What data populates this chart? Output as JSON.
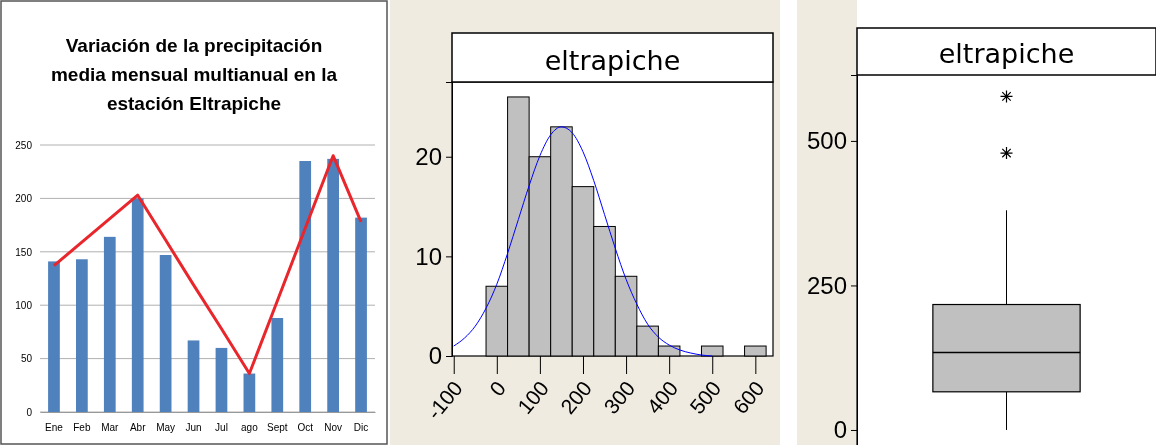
{
  "chart_data": [
    {
      "type": "bar",
      "title": "Variación de la precipitación media mensual multianual  en la estación Eltrapiche",
      "categories": [
        "Ene",
        "Feb",
        "Mar",
        "Abr",
        "May",
        "Jun",
        "Jul",
        "ago",
        "Sept",
        "Oct",
        "Nov",
        "Dic"
      ],
      "ylim": [
        0,
        250
      ],
      "yticks": [
        0,
        50,
        100,
        150,
        200,
        250
      ],
      "grid": "y",
      "series": [
        {
          "type": "bar",
          "color": "#4f81bd",
          "values": [
            141,
            143,
            164,
            200,
            147,
            67,
            60,
            36,
            88,
            235,
            237,
            182
          ]
        },
        {
          "type": "line",
          "color": "#e8262b",
          "values": [
            137,
            159,
            181,
            203,
            161,
            119,
            78,
            36,
            104,
            172,
            240,
            178
          ]
        }
      ]
    },
    {
      "type": "histogram",
      "title": "eltrapiche",
      "xlim": [
        -104,
        641
      ],
      "xticks": [
        -100,
        0,
        100,
        200,
        300,
        400,
        500,
        600
      ],
      "ylim": [
        0,
        27.5
      ],
      "yticks": [
        0,
        10,
        20
      ],
      "series": [
        {
          "type": "histogram",
          "color": "#c0c0c0",
          "bins": [
            -25,
            25,
            75,
            125,
            175,
            225,
            275,
            325,
            375,
            425,
            475,
            525,
            575,
            625
          ],
          "values": [
            7,
            26,
            20,
            23,
            17,
            13,
            8,
            3,
            1,
            0,
            1,
            0,
            1
          ]
        },
        {
          "type": "line",
          "color": "#0000ff",
          "x": [
            -100,
            -75,
            -50,
            -25,
            0,
            25,
            50,
            75,
            100,
            125,
            150,
            175,
            200,
            225,
            250,
            275,
            300,
            325,
            350,
            375,
            400,
            425,
            450,
            475,
            500
          ],
          "values": [
            1.0,
            1.8,
            3.0,
            4.8,
            7.2,
            10.3,
            13.7,
            17.1,
            20.1,
            22.2,
            23.0,
            22.4,
            20.5,
            17.6,
            14.2,
            10.8,
            7.7,
            5.2,
            3.2,
            1.9,
            1.1,
            0.6,
            0.3,
            0.1,
            0
          ]
        }
      ]
    },
    {
      "type": "box",
      "title": "eltrapiche",
      "categories": [
        null
      ],
      "ylim": [
        -26,
        614
      ],
      "yticks": [
        0,
        250,
        500
      ],
      "color": "#c0c0c0",
      "boxes": [
        {
          "low": 0,
          "q1": 66,
          "median": 134,
          "q3": 217,
          "high": 380,
          "outliers": [
            479,
            577
          ]
        }
      ]
    }
  ]
}
